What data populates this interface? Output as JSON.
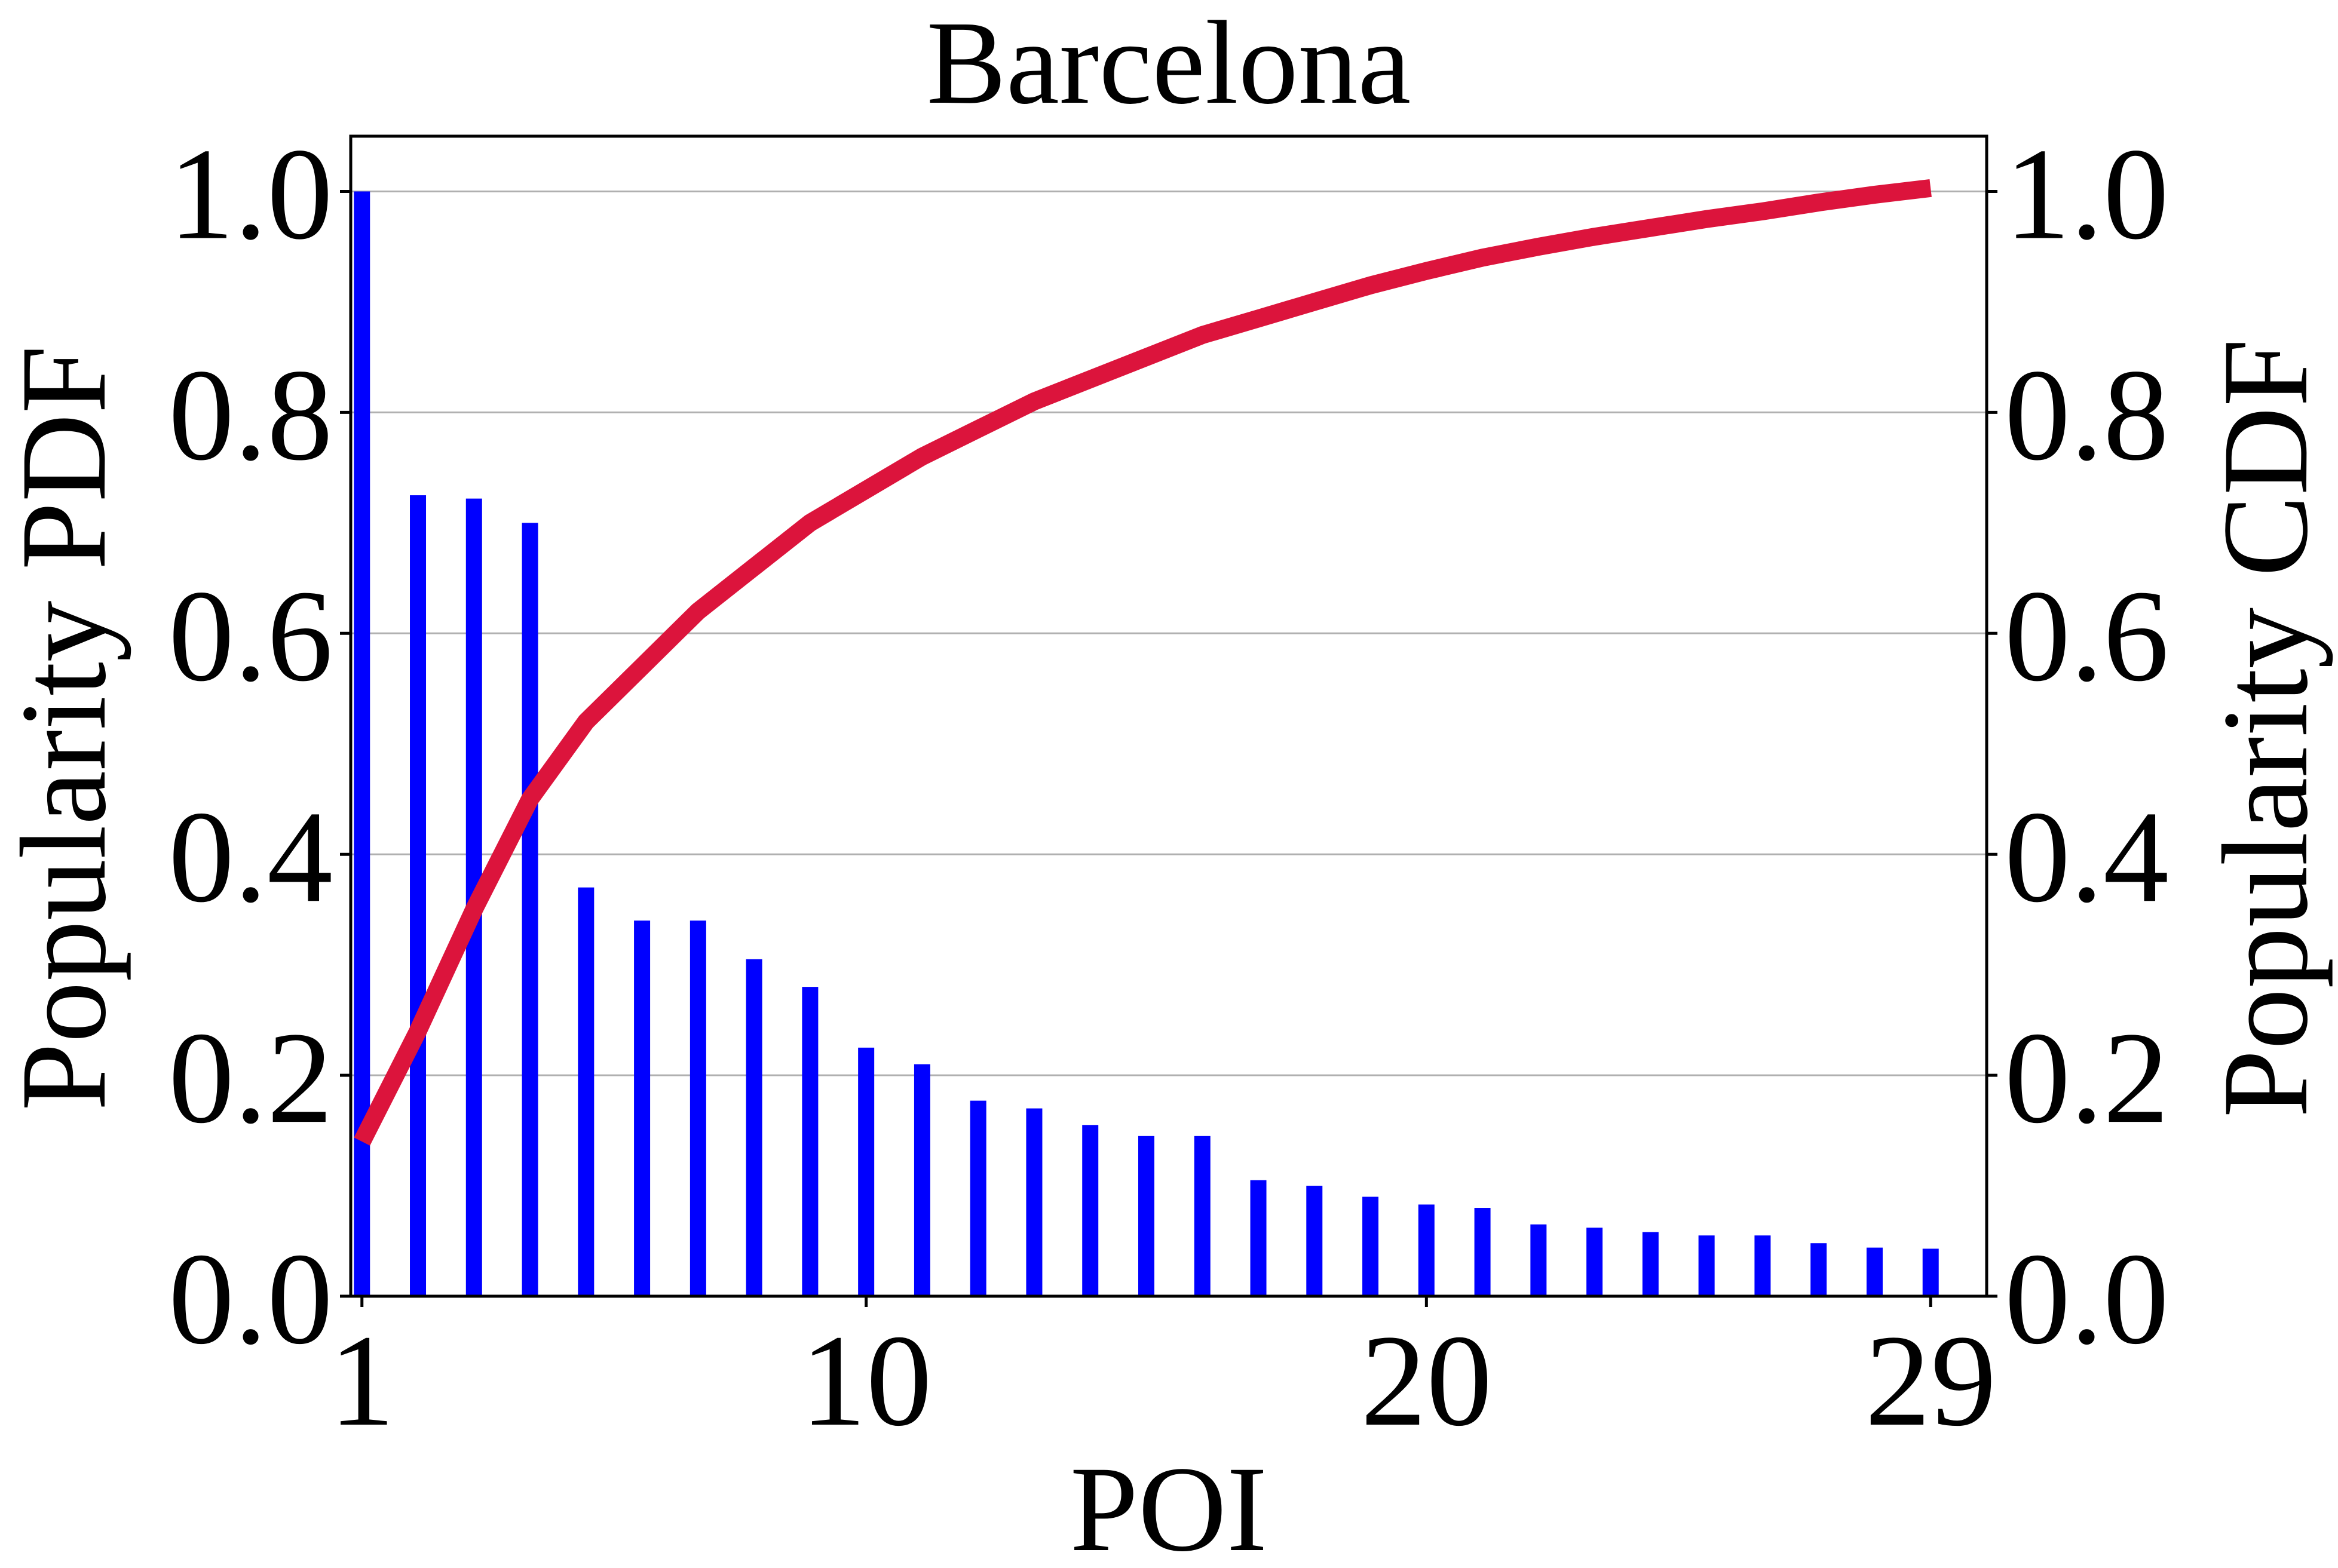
{
  "chart_data": {
    "type": "bar",
    "title": "Barcelona",
    "xlabel": "POI",
    "ylabel": "Popularity PDF",
    "y2label": "Popularity CDF",
    "x": [
      1,
      2,
      3,
      4,
      5,
      6,
      7,
      8,
      9,
      10,
      11,
      12,
      13,
      14,
      15,
      16,
      17,
      18,
      19,
      20,
      21,
      22,
      23,
      24,
      25,
      26,
      27,
      28,
      29
    ],
    "xticks": [
      "1",
      "10",
      "20",
      "29"
    ],
    "xlim": [
      0.8,
      30.0
    ],
    "yticks": [
      "0.0",
      "0.2",
      "0.4",
      "0.6",
      "0.8",
      "1.0"
    ],
    "y2ticks": [
      "0.0",
      "0.2",
      "0.4",
      "0.6",
      "0.8",
      "1.0"
    ],
    "ylim": [
      0,
      1.05
    ],
    "y2lim": [
      0,
      1.05
    ],
    "grid": "horizontal",
    "series": [
      {
        "type": "bar",
        "axis": "left",
        "color": "#0000ff",
        "values": [
          1.0,
          0.725,
          0.722,
          0.7,
          0.37,
          0.34,
          0.34,
          0.305,
          0.28,
          0.225,
          0.21,
          0.177,
          0.17,
          0.155,
          0.145,
          0.145,
          0.105,
          0.1,
          0.09,
          0.083,
          0.08,
          0.065,
          0.062,
          0.058,
          0.055,
          0.055,
          0.048,
          0.044,
          0.043
        ]
      },
      {
        "type": "line",
        "axis": "right",
        "color": "#dc143c",
        "values": [
          0.14,
          0.24,
          0.35,
          0.45,
          0.52,
          0.57,
          0.62,
          0.66,
          0.7,
          0.73,
          0.76,
          0.785,
          0.81,
          0.83,
          0.85,
          0.87,
          0.885,
          0.9,
          0.915,
          0.928,
          0.94,
          0.95,
          0.959,
          0.967,
          0.975,
          0.982,
          0.99,
          0.997,
          1.003
        ]
      }
    ]
  }
}
